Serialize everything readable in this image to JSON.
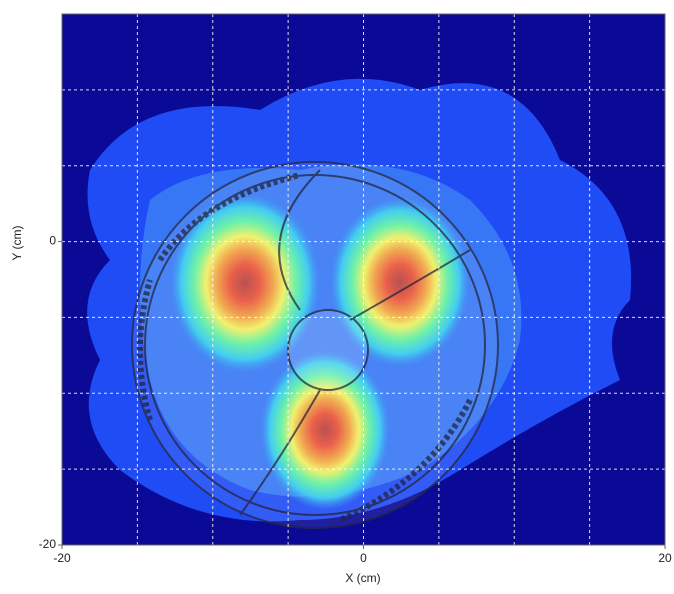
{
  "chart_data": {
    "type": "contour",
    "xlabel": "X (cm)",
    "ylabel": "Y (cm)",
    "xlim": [
      -20,
      20
    ],
    "ylim": [
      -20,
      15
    ],
    "xticks": [
      -20,
      0,
      20
    ],
    "yticks": [
      -20,
      0
    ],
    "x_grid": [
      -15,
      -10,
      -5,
      0,
      5,
      10,
      15
    ],
    "y_grid": [
      -15,
      -10,
      -5,
      0,
      5,
      10
    ],
    "grid": true
  }
}
